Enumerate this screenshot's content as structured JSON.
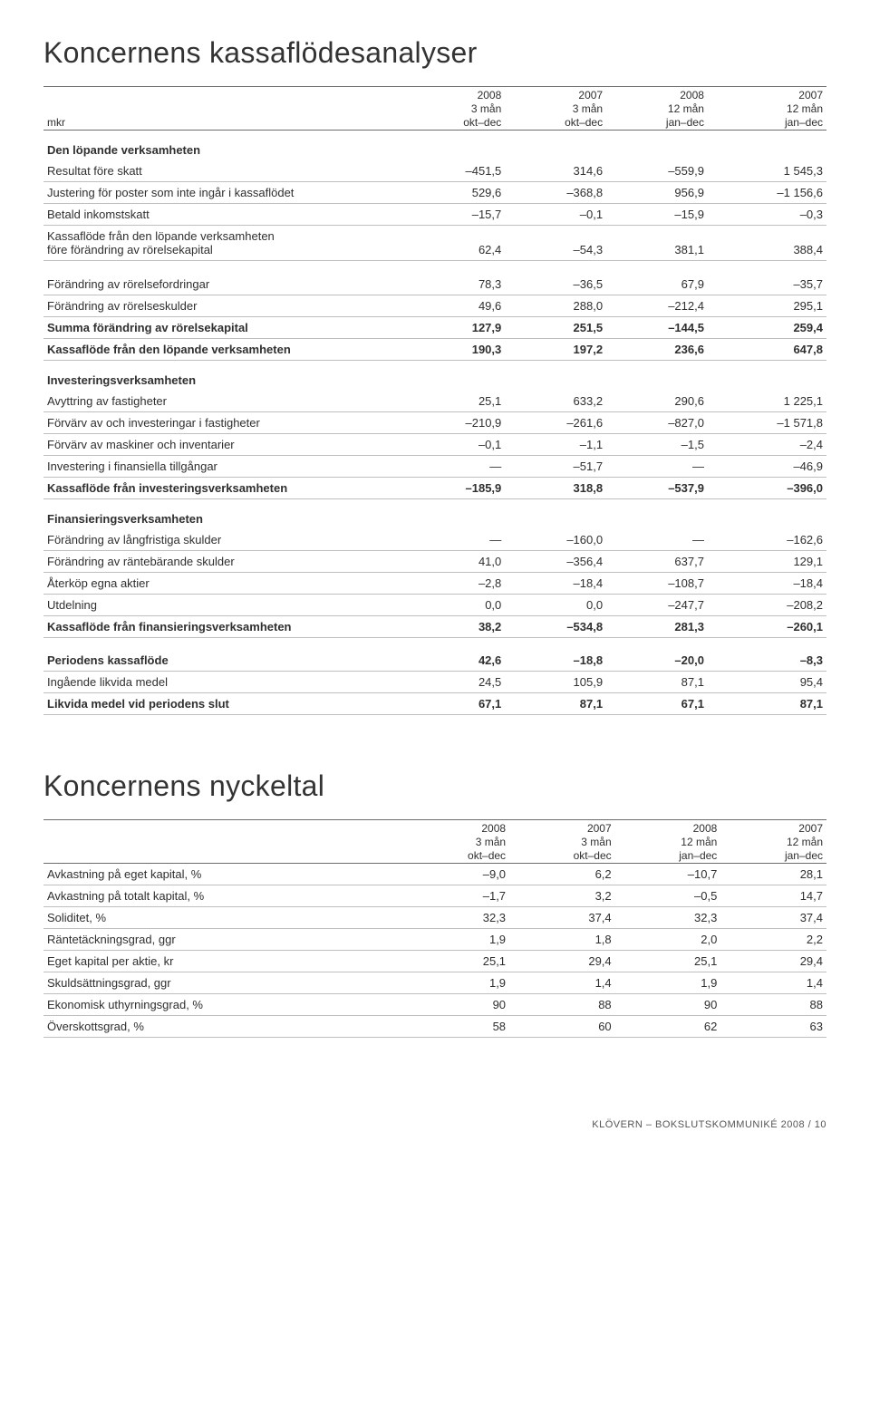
{
  "table1": {
    "title": "Koncernens kassaflödesanalyser",
    "unit_label": "mkr",
    "columns": [
      {
        "year": "2008",
        "period": "3 mån",
        "range": "okt–dec"
      },
      {
        "year": "2007",
        "period": "3 mån",
        "range": "okt–dec"
      },
      {
        "year": "2008",
        "period": "12 mån",
        "range": "jan–dec"
      },
      {
        "year": "2007",
        "period": "12 mån",
        "range": "jan–dec"
      }
    ],
    "sections": [
      {
        "heading": "Den löpande verksamheten",
        "rows": [
          {
            "label": "Resultat före skatt",
            "v": [
              "–451,5",
              "314,6",
              "–559,9",
              "1 545,3"
            ]
          },
          {
            "label": "Justering för poster som inte ingår i kassaflödet",
            "v": [
              "529,6",
              "–368,8",
              "956,9",
              "–1 156,6"
            ]
          },
          {
            "label": "Betald inkomstskatt",
            "v": [
              "–15,7",
              "–0,1",
              "–15,9",
              "–0,3"
            ]
          },
          {
            "label": "Kassaflöde från den löpande verksamheten\nföre förändring av rörelsekapital",
            "v": [
              "62,4",
              "–54,3",
              "381,1",
              "388,4"
            ],
            "multi": true
          }
        ]
      },
      {
        "heading": null,
        "rows": [
          {
            "label": "Förändring av rörelsefordringar",
            "v": [
              "78,3",
              "–36,5",
              "67,9",
              "–35,7"
            ]
          },
          {
            "label": "Förändring av rörelseskulder",
            "v": [
              "49,6",
              "288,0",
              "–212,4",
              "295,1"
            ]
          },
          {
            "label": "Summa förändring av rörelsekapital",
            "v": [
              "127,9",
              "251,5",
              "–144,5",
              "259,4"
            ],
            "bold": true
          },
          {
            "label": "Kassaflöde från den löpande verksamheten",
            "v": [
              "190,3",
              "197,2",
              "236,6",
              "647,8"
            ],
            "bold": true
          }
        ]
      },
      {
        "heading": "Investeringsverksamheten",
        "rows": [
          {
            "label": "Avyttring av fastigheter",
            "v": [
              "25,1",
              "633,2",
              "290,6",
              "1 225,1"
            ]
          },
          {
            "label": "Förvärv av och investeringar i fastigheter",
            "v": [
              "–210,9",
              "–261,6",
              "–827,0",
              "–1 571,8"
            ]
          },
          {
            "label": "Förvärv av maskiner och inventarier",
            "v": [
              "–0,1",
              "–1,1",
              "–1,5",
              "–2,4"
            ]
          },
          {
            "label": "Investering i finansiella tillgångar",
            "v": [
              "—",
              "–51,7",
              "—",
              "–46,9"
            ]
          },
          {
            "label": "Kassaflöde från investeringsverksamheten",
            "v": [
              "–185,9",
              "318,8",
              "–537,9",
              "–396,0"
            ],
            "bold": true
          }
        ]
      },
      {
        "heading": "Finansieringsverksamheten",
        "rows": [
          {
            "label": "Förändring av långfristiga skulder",
            "v": [
              "—",
              "–160,0",
              "—",
              "–162,6"
            ]
          },
          {
            "label": "Förändring av räntebärande skulder",
            "v": [
              "41,0",
              "–356,4",
              "637,7",
              "129,1"
            ]
          },
          {
            "label": "Återköp egna aktier",
            "v": [
              "–2,8",
              "–18,4",
              "–108,7",
              "–18,4"
            ]
          },
          {
            "label": "Utdelning",
            "v": [
              "0,0",
              "0,0",
              "–247,7",
              "–208,2"
            ]
          },
          {
            "label": "Kassaflöde från finansieringsverksamheten",
            "v": [
              "38,2",
              "–534,8",
              "281,3",
              "–260,1"
            ],
            "bold": true
          }
        ]
      },
      {
        "heading": null,
        "rows": [
          {
            "label": "Periodens kassaflöde",
            "v": [
              "42,6",
              "–18,8",
              "–20,0",
              "–8,3"
            ],
            "bold": true
          },
          {
            "label": "Ingående likvida medel",
            "v": [
              "24,5",
              "105,9",
              "87,1",
              "95,4"
            ]
          },
          {
            "label": "Likvida medel vid periodens slut",
            "v": [
              "67,1",
              "87,1",
              "67,1",
              "87,1"
            ],
            "bold": true
          }
        ]
      }
    ]
  },
  "table2": {
    "title": "Koncernens nyckeltal",
    "unit_label": "",
    "columns": [
      {
        "year": "2008",
        "period": "3 mån",
        "range": "okt–dec"
      },
      {
        "year": "2007",
        "period": "3 mån",
        "range": "okt–dec"
      },
      {
        "year": "2008",
        "period": "12 mån",
        "range": "jan–dec"
      },
      {
        "year": "2007",
        "period": "12 mån",
        "range": "jan–dec"
      }
    ],
    "rows": [
      {
        "label": "Avkastning på eget kapital, %",
        "v": [
          "–9,0",
          "6,2",
          "–10,7",
          "28,1"
        ]
      },
      {
        "label": "Avkastning på totalt kapital, %",
        "v": [
          "–1,7",
          "3,2",
          "–0,5",
          "14,7"
        ]
      },
      {
        "label": "Soliditet, %",
        "v": [
          "32,3",
          "37,4",
          "32,3",
          "37,4"
        ]
      },
      {
        "label": "Räntetäckningsgrad, ggr",
        "v": [
          "1,9",
          "1,8",
          "2,0",
          "2,2"
        ]
      },
      {
        "label": "Eget kapital per aktie, kr",
        "v": [
          "25,1",
          "29,4",
          "25,1",
          "29,4"
        ]
      },
      {
        "label": "Skuldsättningsgrad, ggr",
        "v": [
          "1,9",
          "1,4",
          "1,9",
          "1,4"
        ]
      },
      {
        "label": "Ekonomisk uthyrningsgrad, %",
        "v": [
          "90",
          "88",
          "90",
          "88"
        ]
      },
      {
        "label": "Överskottsgrad, %",
        "v": [
          "58",
          "60",
          "62",
          "63"
        ]
      }
    ]
  },
  "footer": "KLÖVERN – BOKSLUTSKOMMUNIKÉ 2008  /  10"
}
